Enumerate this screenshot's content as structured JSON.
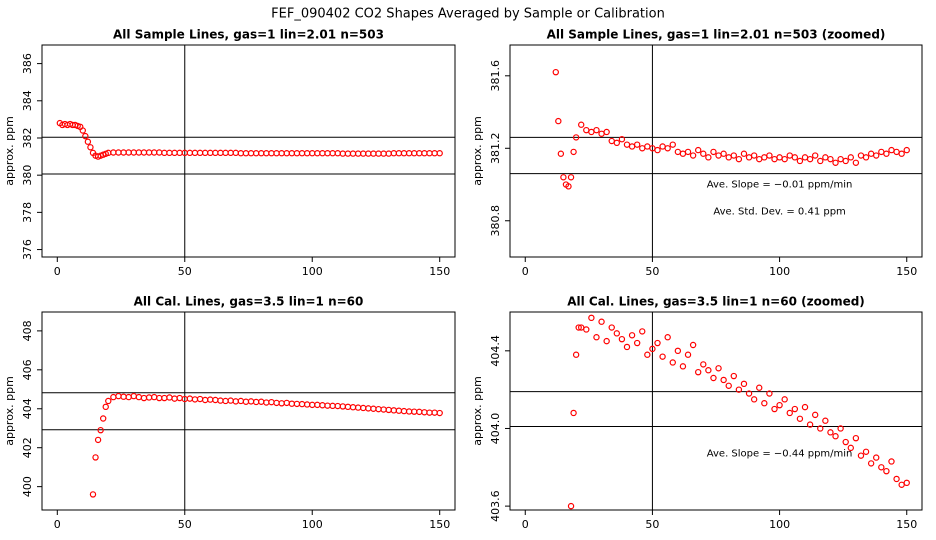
{
  "title": "FEF_090402  CO2 Shapes Averaged by Sample or Calibration",
  "chart_data": [
    {
      "type": "scatter",
      "title": "All Sample Lines, gas=1 lin=2.01 n=503",
      "ylabel": "approx. ppm",
      "color": "#ff0000",
      "xlim": [
        -6,
        156
      ],
      "xticks": [
        0,
        50,
        100,
        150
      ],
      "ylim": [
        375.6,
        387
      ],
      "yticks": [
        376,
        378,
        380,
        382,
        384,
        386
      ],
      "hlines": [
        382.04,
        380.06
      ],
      "vlines": [
        50
      ],
      "annotations": [],
      "x": [
        1,
        2,
        3,
        4,
        5,
        6,
        7,
        8,
        9,
        10,
        11,
        12,
        13,
        14,
        15,
        16,
        17,
        18,
        19,
        20,
        22,
        24,
        26,
        28,
        30,
        32,
        34,
        36,
        38,
        40,
        42,
        44,
        46,
        48,
        50,
        52,
        54,
        56,
        58,
        60,
        62,
        64,
        66,
        68,
        70,
        72,
        74,
        76,
        78,
        80,
        82,
        84,
        86,
        88,
        90,
        92,
        94,
        96,
        98,
        100,
        102,
        104,
        106,
        108,
        110,
        112,
        114,
        116,
        118,
        120,
        122,
        124,
        126,
        128,
        130,
        132,
        134,
        136,
        138,
        140,
        142,
        144,
        146,
        148,
        150
      ],
      "values": [
        382.8,
        382.7,
        382.75,
        382.7,
        382.75,
        382.7,
        382.7,
        382.65,
        382.6,
        382.4,
        382.1,
        381.8,
        381.5,
        381.2,
        381.05,
        381.0,
        381.05,
        381.1,
        381.15,
        381.2,
        381.22,
        381.22,
        381.22,
        381.22,
        381.22,
        381.22,
        381.22,
        381.22,
        381.22,
        381.22,
        381.2,
        381.2,
        381.2,
        381.2,
        381.2,
        381.2,
        381.2,
        381.2,
        381.2,
        381.2,
        381.2,
        381.2,
        381.2,
        381.2,
        381.2,
        381.18,
        381.18,
        381.18,
        381.18,
        381.18,
        381.18,
        381.18,
        381.18,
        381.18,
        381.18,
        381.18,
        381.18,
        381.18,
        381.18,
        381.18,
        381.18,
        381.18,
        381.18,
        381.18,
        381.18,
        381.16,
        381.16,
        381.16,
        381.16,
        381.16,
        381.16,
        381.16,
        381.16,
        381.16,
        381.16,
        381.18,
        381.18,
        381.18,
        381.18,
        381.18,
        381.18,
        381.18,
        381.18,
        381.18,
        381.18
      ]
    },
    {
      "type": "scatter",
      "title": "All Sample Lines, gas=1 lin=2.01 n=503 (zoomed)",
      "ylabel": "approx. ppm",
      "color": "#ff0000",
      "xlim": [
        -6,
        156
      ],
      "xticks": [
        0,
        50,
        100,
        150
      ],
      "ylim": [
        380.6,
        381.77
      ],
      "yticks": [
        380.8,
        381.2,
        381.6
      ],
      "hlines": [
        381.26,
        381.06
      ],
      "vlines": [
        50
      ],
      "annotations": [
        {
          "text": "Ave. Slope =  −0.01  ppm/min",
          "x": 100,
          "y": 381.0
        },
        {
          "text": "Ave. Std. Dev. =  0.41  ppm",
          "x": 100,
          "y": 380.85
        }
      ],
      "x": [
        12,
        13,
        14,
        15,
        16,
        17,
        18,
        19,
        20,
        22,
        24,
        26,
        28,
        30,
        32,
        34,
        36,
        38,
        40,
        42,
        44,
        46,
        48,
        50,
        52,
        54,
        56,
        58,
        60,
        62,
        64,
        66,
        68,
        70,
        72,
        74,
        76,
        78,
        80,
        82,
        84,
        86,
        88,
        90,
        92,
        94,
        96,
        98,
        100,
        102,
        104,
        106,
        108,
        110,
        112,
        114,
        116,
        118,
        120,
        122,
        124,
        126,
        128,
        130,
        132,
        134,
        136,
        138,
        140,
        142,
        144,
        146,
        148,
        150
      ],
      "values": [
        381.62,
        381.35,
        381.17,
        381.04,
        381.0,
        380.99,
        381.04,
        381.18,
        381.26,
        381.33,
        381.3,
        381.29,
        381.3,
        381.28,
        381.29,
        381.24,
        381.23,
        381.25,
        381.22,
        381.21,
        381.22,
        381.2,
        381.21,
        381.2,
        381.19,
        381.21,
        381.2,
        381.22,
        381.18,
        381.17,
        381.18,
        381.16,
        381.19,
        381.17,
        381.15,
        381.18,
        381.16,
        381.17,
        381.15,
        381.16,
        381.14,
        381.17,
        381.15,
        381.16,
        381.14,
        381.15,
        381.16,
        381.14,
        381.15,
        381.14,
        381.16,
        381.15,
        381.13,
        381.15,
        381.14,
        381.16,
        381.13,
        381.15,
        381.14,
        381.12,
        381.14,
        381.13,
        381.15,
        381.12,
        381.16,
        381.15,
        381.17,
        381.16,
        381.18,
        381.17,
        381.19,
        381.18,
        381.17,
        381.19
      ]
    },
    {
      "type": "scatter",
      "title": "All Cal. Lines, gas=3.5 lin=1 n=60",
      "ylabel": "approx. ppm",
      "color": "#ff0000",
      "xlim": [
        -6,
        156
      ],
      "xticks": [
        0,
        50,
        100,
        150
      ],
      "ylim": [
        398.8,
        408.97
      ],
      "yticks": [
        400,
        402,
        404,
        406,
        408
      ],
      "hlines": [
        404.82,
        402.92
      ],
      "vlines": [
        50
      ],
      "annotations": [],
      "x": [
        14,
        15,
        16,
        17,
        18,
        19,
        20,
        22,
        24,
        26,
        28,
        30,
        32,
        34,
        36,
        38,
        40,
        42,
        44,
        46,
        48,
        50,
        52,
        54,
        56,
        58,
        60,
        62,
        64,
        66,
        68,
        70,
        72,
        74,
        76,
        78,
        80,
        82,
        84,
        86,
        88,
        90,
        92,
        94,
        96,
        98,
        100,
        102,
        104,
        106,
        108,
        110,
        112,
        114,
        116,
        118,
        120,
        122,
        124,
        126,
        128,
        130,
        132,
        134,
        136,
        138,
        140,
        142,
        144,
        146,
        148,
        150
      ],
      "values": [
        399.6,
        401.5,
        402.4,
        402.9,
        403.5,
        404.1,
        404.4,
        404.6,
        404.65,
        404.62,
        404.6,
        404.65,
        404.6,
        404.55,
        404.58,
        404.6,
        404.55,
        404.55,
        404.58,
        404.52,
        404.55,
        404.5,
        404.52,
        404.48,
        404.5,
        404.45,
        404.47,
        404.45,
        404.42,
        404.4,
        404.42,
        404.38,
        404.4,
        404.36,
        404.38,
        404.35,
        404.36,
        404.32,
        404.34,
        404.3,
        404.28,
        404.3,
        404.26,
        404.25,
        404.24,
        404.22,
        404.2,
        404.2,
        404.18,
        404.16,
        404.15,
        404.14,
        404.12,
        404.1,
        404.08,
        404.06,
        404.04,
        404.02,
        404.0,
        403.98,
        403.96,
        403.94,
        403.92,
        403.9,
        403.88,
        403.86,
        403.85,
        403.84,
        403.82,
        403.8,
        403.8,
        403.78
      ]
    },
    {
      "type": "scatter",
      "title": "All Cal. Lines, gas=3.5 lin=1 n=60 (zoomed)",
      "ylabel": "approx. ppm",
      "color": "#ff0000",
      "xlim": [
        -6,
        156
      ],
      "xticks": [
        0,
        50,
        100,
        150
      ],
      "ylim": [
        403.58,
        404.6
      ],
      "yticks": [
        403.6,
        {
          "value": 404,
          "label": "404.0"
        },
        404.4
      ],
      "hlines": [
        404.19,
        404.01
      ],
      "vlines": [
        50
      ],
      "annotations": [
        {
          "text": "Ave. Slope =  −0.44  ppm/min",
          "x": 100,
          "y": 403.87
        }
      ],
      "x": [
        18,
        19,
        20,
        21,
        22,
        24,
        26,
        28,
        30,
        32,
        34,
        36,
        38,
        40,
        42,
        44,
        46,
        48,
        50,
        52,
        54,
        56,
        58,
        60,
        62,
        64,
        66,
        68,
        70,
        72,
        74,
        76,
        78,
        80,
        82,
        84,
        86,
        88,
        90,
        92,
        94,
        96,
        98,
        100,
        102,
        104,
        106,
        108,
        110,
        112,
        114,
        116,
        118,
        120,
        122,
        124,
        126,
        128,
        130,
        132,
        134,
        136,
        138,
        140,
        142,
        144,
        146,
        148,
        150
      ],
      "values": [
        403.6,
        404.08,
        404.38,
        404.52,
        404.52,
        404.51,
        404.57,
        404.47,
        404.55,
        404.45,
        404.52,
        404.49,
        404.46,
        404.42,
        404.48,
        404.44,
        404.5,
        404.38,
        404.41,
        404.44,
        404.37,
        404.47,
        404.34,
        404.4,
        404.32,
        404.38,
        404.43,
        404.29,
        404.33,
        404.3,
        404.26,
        404.31,
        404.25,
        404.22,
        404.27,
        404.2,
        404.23,
        404.18,
        404.15,
        404.21,
        404.13,
        404.18,
        404.1,
        404.12,
        404.15,
        404.08,
        404.1,
        404.05,
        404.11,
        404.02,
        404.07,
        404.0,
        404.04,
        403.98,
        403.96,
        404.0,
        403.93,
        403.9,
        403.95,
        403.86,
        403.88,
        403.82,
        403.85,
        403.8,
        403.78,
        403.83,
        403.74,
        403.71,
        403.72
      ]
    }
  ]
}
